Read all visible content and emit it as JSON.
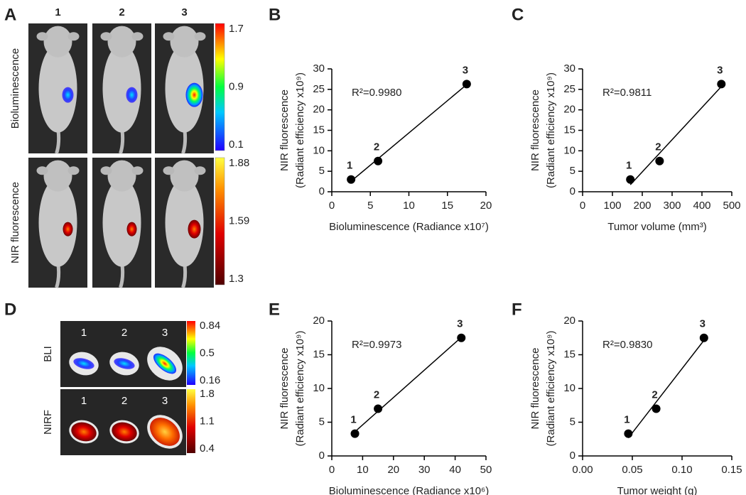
{
  "panel_a": {
    "letter": "A",
    "columns": [
      "1",
      "2",
      "3"
    ],
    "rows": [
      {
        "label": "Bioluminescence",
        "scale": [
          1.7,
          0.9,
          0.1
        ]
      },
      {
        "label": "NIR fluorescence",
        "scale": [
          1.88,
          1.59,
          1.3
        ]
      }
    ]
  },
  "panel_d": {
    "letter": "D",
    "columns": [
      "1",
      "2",
      "3"
    ],
    "rows": [
      {
        "label": "BLI",
        "scale": [
          0.84,
          0.5,
          0.16
        ]
      },
      {
        "label": "NIRF",
        "scale": [
          1.8,
          1.1,
          0.4
        ]
      }
    ]
  },
  "chart_data": [
    {
      "type": "scatter",
      "panel": "B",
      "x": [
        2.5,
        6,
        17.5
      ],
      "values": [
        3,
        7.5,
        26.3
      ],
      "point_labels": [
        "1",
        "2",
        "3"
      ],
      "annotation": "R²=0.9980",
      "xlabel": "Bioluminescence (Radiance x10⁷)",
      "ylabel": [
        "NIR fluorescence",
        "(Radiant efficiency x10⁹)"
      ],
      "xlim": [
        0,
        20
      ],
      "xticks": [
        0,
        5,
        10,
        15,
        20
      ],
      "ylim": [
        0,
        30
      ],
      "yticks": [
        0,
        5,
        10,
        15,
        20,
        25,
        30
      ],
      "color": "#000000",
      "fit_line": true
    },
    {
      "type": "scatter",
      "panel": "C",
      "x": [
        160,
        258,
        465
      ],
      "values": [
        3,
        7.5,
        26.3
      ],
      "point_labels": [
        "1",
        "2",
        "3"
      ],
      "annotation": "R²=0.9811",
      "xlabel": "Tumor volume (mm³)",
      "ylabel": [
        "NIR fluorescence",
        "(Radiant efficiency x10⁹)"
      ],
      "xlim": [
        0,
        500
      ],
      "xticks": [
        0,
        100,
        200,
        300,
        400,
        500
      ],
      "ylim": [
        0,
        30
      ],
      "yticks": [
        0,
        5,
        10,
        15,
        20,
        25,
        30
      ],
      "color": "#000000",
      "fit_line": true
    },
    {
      "type": "scatter",
      "panel": "E",
      "x": [
        7.5,
        15,
        42
      ],
      "values": [
        3.3,
        7,
        17.5
      ],
      "point_labels": [
        "1",
        "2",
        "3"
      ],
      "annotation": "R²=0.9973",
      "xlabel": "Bioluminescence (Radiance x10⁶)",
      "ylabel": [
        "NIR fluorescence",
        "(Radiant efficiency x10⁹)"
      ],
      "xlim": [
        0,
        50
      ],
      "xticks": [
        0,
        10,
        20,
        30,
        40,
        50
      ],
      "ylim": [
        0,
        20
      ],
      "yticks": [
        0,
        5,
        10,
        15,
        20
      ],
      "color": "#000000",
      "fit_line": true
    },
    {
      "type": "scatter",
      "panel": "F",
      "x": [
        0.046,
        0.074,
        0.122
      ],
      "values": [
        3.3,
        7,
        17.5
      ],
      "point_labels": [
        "1",
        "2",
        "3"
      ],
      "annotation": "R²=0.9830",
      "xlabel": "Tumor weight (g)",
      "ylabel": [
        "NIR fluorescence",
        "(Radiant efficiency x10⁹)"
      ],
      "xlim": [
        0,
        0.15
      ],
      "xticks": [
        {
          "value": 0,
          "label": "0.00"
        },
        0.05,
        {
          "value": 0.1,
          "label": "0.10"
        },
        0.15
      ],
      "ylim": [
        0,
        20
      ],
      "yticks": [
        0,
        5,
        10,
        15,
        20
      ],
      "color": "#000000",
      "fit_line": true
    }
  ]
}
